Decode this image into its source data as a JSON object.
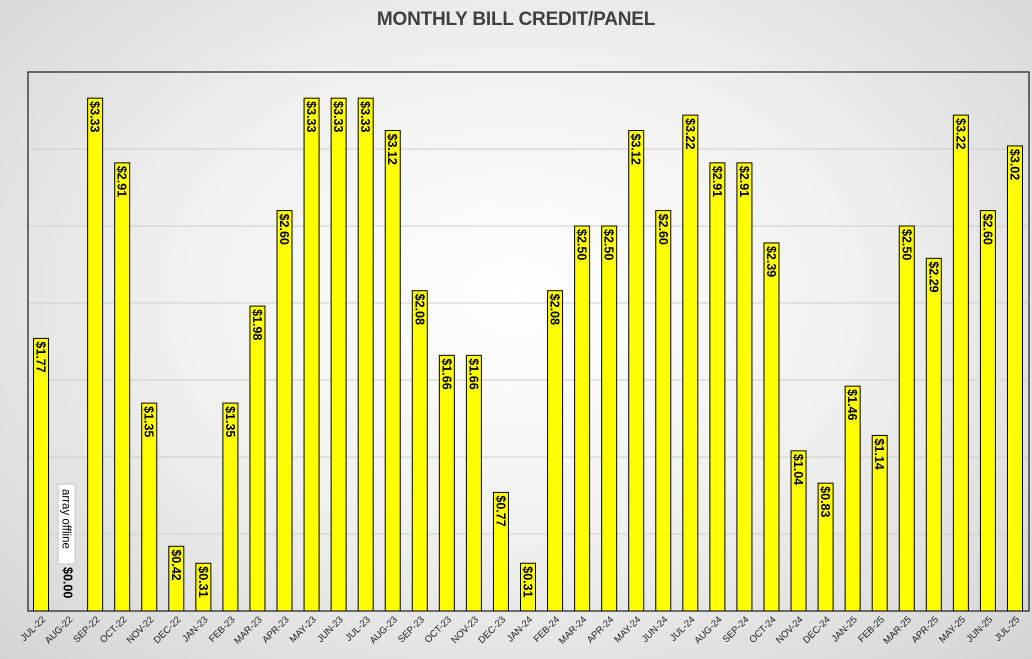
{
  "chart_data": {
    "type": "bar",
    "title": "MONTHLY BILL CREDIT/PANEL",
    "xlabel": "",
    "ylabel": "",
    "ylim": [
      0,
      3.5
    ],
    "grid": true,
    "categories": [
      "JUL-22",
      "AUG-22",
      "SEP-22",
      "OCT-22",
      "NOV-22",
      "DEC-22",
      "JAN-23",
      "FEB-23",
      "MAR-23",
      "APR-23",
      "MAY-23",
      "JUN-23",
      "JUL-23",
      "AUG-23",
      "SEP-23",
      "OCT-23",
      "NOV-23",
      "DEC-23",
      "JAN-24",
      "FEB-24",
      "MAR-24",
      "APR-24",
      "MAY-24",
      "JUN-24",
      "JUL-24",
      "AUG-24",
      "SEP-24",
      "OCT-24",
      "NOV-24",
      "DEC-24",
      "JAN-25",
      "FEB-25",
      "MAR-25",
      "APR-25",
      "MAY-25",
      "JUN-25",
      "JUL-25"
    ],
    "values": [
      1.77,
      0.0,
      3.33,
      2.91,
      1.35,
      0.42,
      0.31,
      1.35,
      1.98,
      2.6,
      3.33,
      3.33,
      3.33,
      3.12,
      2.08,
      1.66,
      1.66,
      0.77,
      0.31,
      2.08,
      2.5,
      2.5,
      3.12,
      2.6,
      3.22,
      2.91,
      2.91,
      2.39,
      1.04,
      0.83,
      1.46,
      1.14,
      2.5,
      2.29,
      3.22,
      2.6,
      3.02
    ],
    "data_labels": [
      "$1.77",
      "$0.00",
      "$3.33",
      "$2.91",
      "$1.35",
      "$0.42",
      "$0.31",
      "$1.35",
      "$1.98",
      "$2.60",
      "$3.33",
      "$3.33",
      "$3.33",
      "$3.12",
      "$2.08",
      "$1.66",
      "$1.66",
      "$0.77",
      "$0.31",
      "$2.08",
      "$2.50",
      "$2.50",
      "$3.12",
      "$2.60",
      "$3.22",
      "$2.91",
      "$2.91",
      "$2.39",
      "$1.04",
      "$0.83",
      "$1.46",
      "$1.14",
      "$2.50",
      "$2.29",
      "$3.22",
      "$2.60",
      "$3.02"
    ],
    "annotations": [
      {
        "category": "AUG-22",
        "text": "array offline"
      }
    ],
    "colors": {
      "bar_fill": "#ffff00",
      "bar_stroke": "#000000"
    }
  }
}
